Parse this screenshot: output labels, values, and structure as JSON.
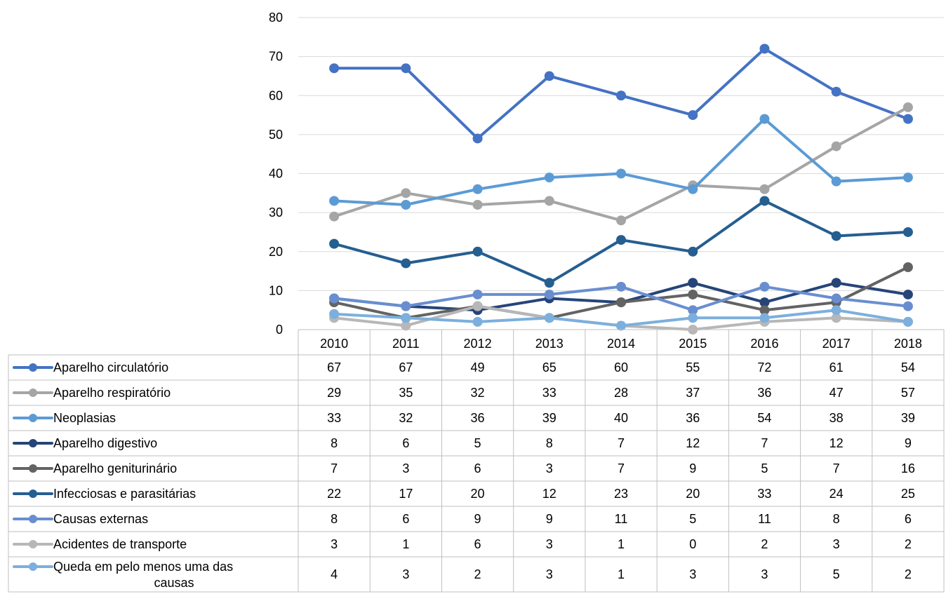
{
  "chart_data": {
    "type": "line",
    "title": "",
    "xlabel": "",
    "ylabel": "",
    "ylim": [
      0,
      80
    ],
    "yticks": [
      "0",
      "10",
      "20",
      "30",
      "40",
      "50",
      "60",
      "70",
      "80"
    ],
    "grid": "horizontal",
    "legend": "data-table",
    "categories": [
      "2010",
      "2011",
      "2012",
      "2013",
      "2014",
      "2015",
      "2016",
      "2017",
      "2018"
    ],
    "series": [
      {
        "name": "Aparelho circulatório",
        "color": "#4472C4",
        "values": [
          67,
          67,
          49,
          65,
          60,
          55,
          72,
          61,
          54
        ]
      },
      {
        "name": "Aparelho respiratório",
        "color": "#A5A5A5",
        "values": [
          29,
          35,
          32,
          33,
          28,
          37,
          36,
          47,
          57
        ]
      },
      {
        "name": "Neoplasias",
        "color": "#5B9BD5",
        "values": [
          33,
          32,
          36,
          39,
          40,
          36,
          54,
          38,
          39
        ]
      },
      {
        "name": "Aparelho digestivo",
        "color": "#264478",
        "values": [
          8,
          6,
          5,
          8,
          7,
          12,
          7,
          12,
          9
        ]
      },
      {
        "name": "Aparelho geniturinário",
        "color": "#636363",
        "values": [
          7,
          3,
          6,
          3,
          7,
          9,
          5,
          7,
          16
        ]
      },
      {
        "name": "Infecciosas e parasitárias",
        "color": "#255E91",
        "values": [
          22,
          17,
          20,
          12,
          23,
          20,
          33,
          24,
          25
        ]
      },
      {
        "name": "Causas externas",
        "color": "#698ED0",
        "values": [
          8,
          6,
          9,
          9,
          11,
          5,
          11,
          8,
          6
        ]
      },
      {
        "name": "Acidentes de transporte",
        "color": "#B7B7B7",
        "values": [
          3,
          1,
          6,
          3,
          1,
          0,
          2,
          3,
          2
        ]
      },
      {
        "name": "Queda em pelo menos uma das causas",
        "name_lines": [
          "Queda em pelo menos uma das",
          "causas"
        ],
        "color": "#7CAFDD",
        "values": [
          4,
          3,
          2,
          3,
          1,
          3,
          3,
          5,
          2
        ]
      }
    ]
  }
}
